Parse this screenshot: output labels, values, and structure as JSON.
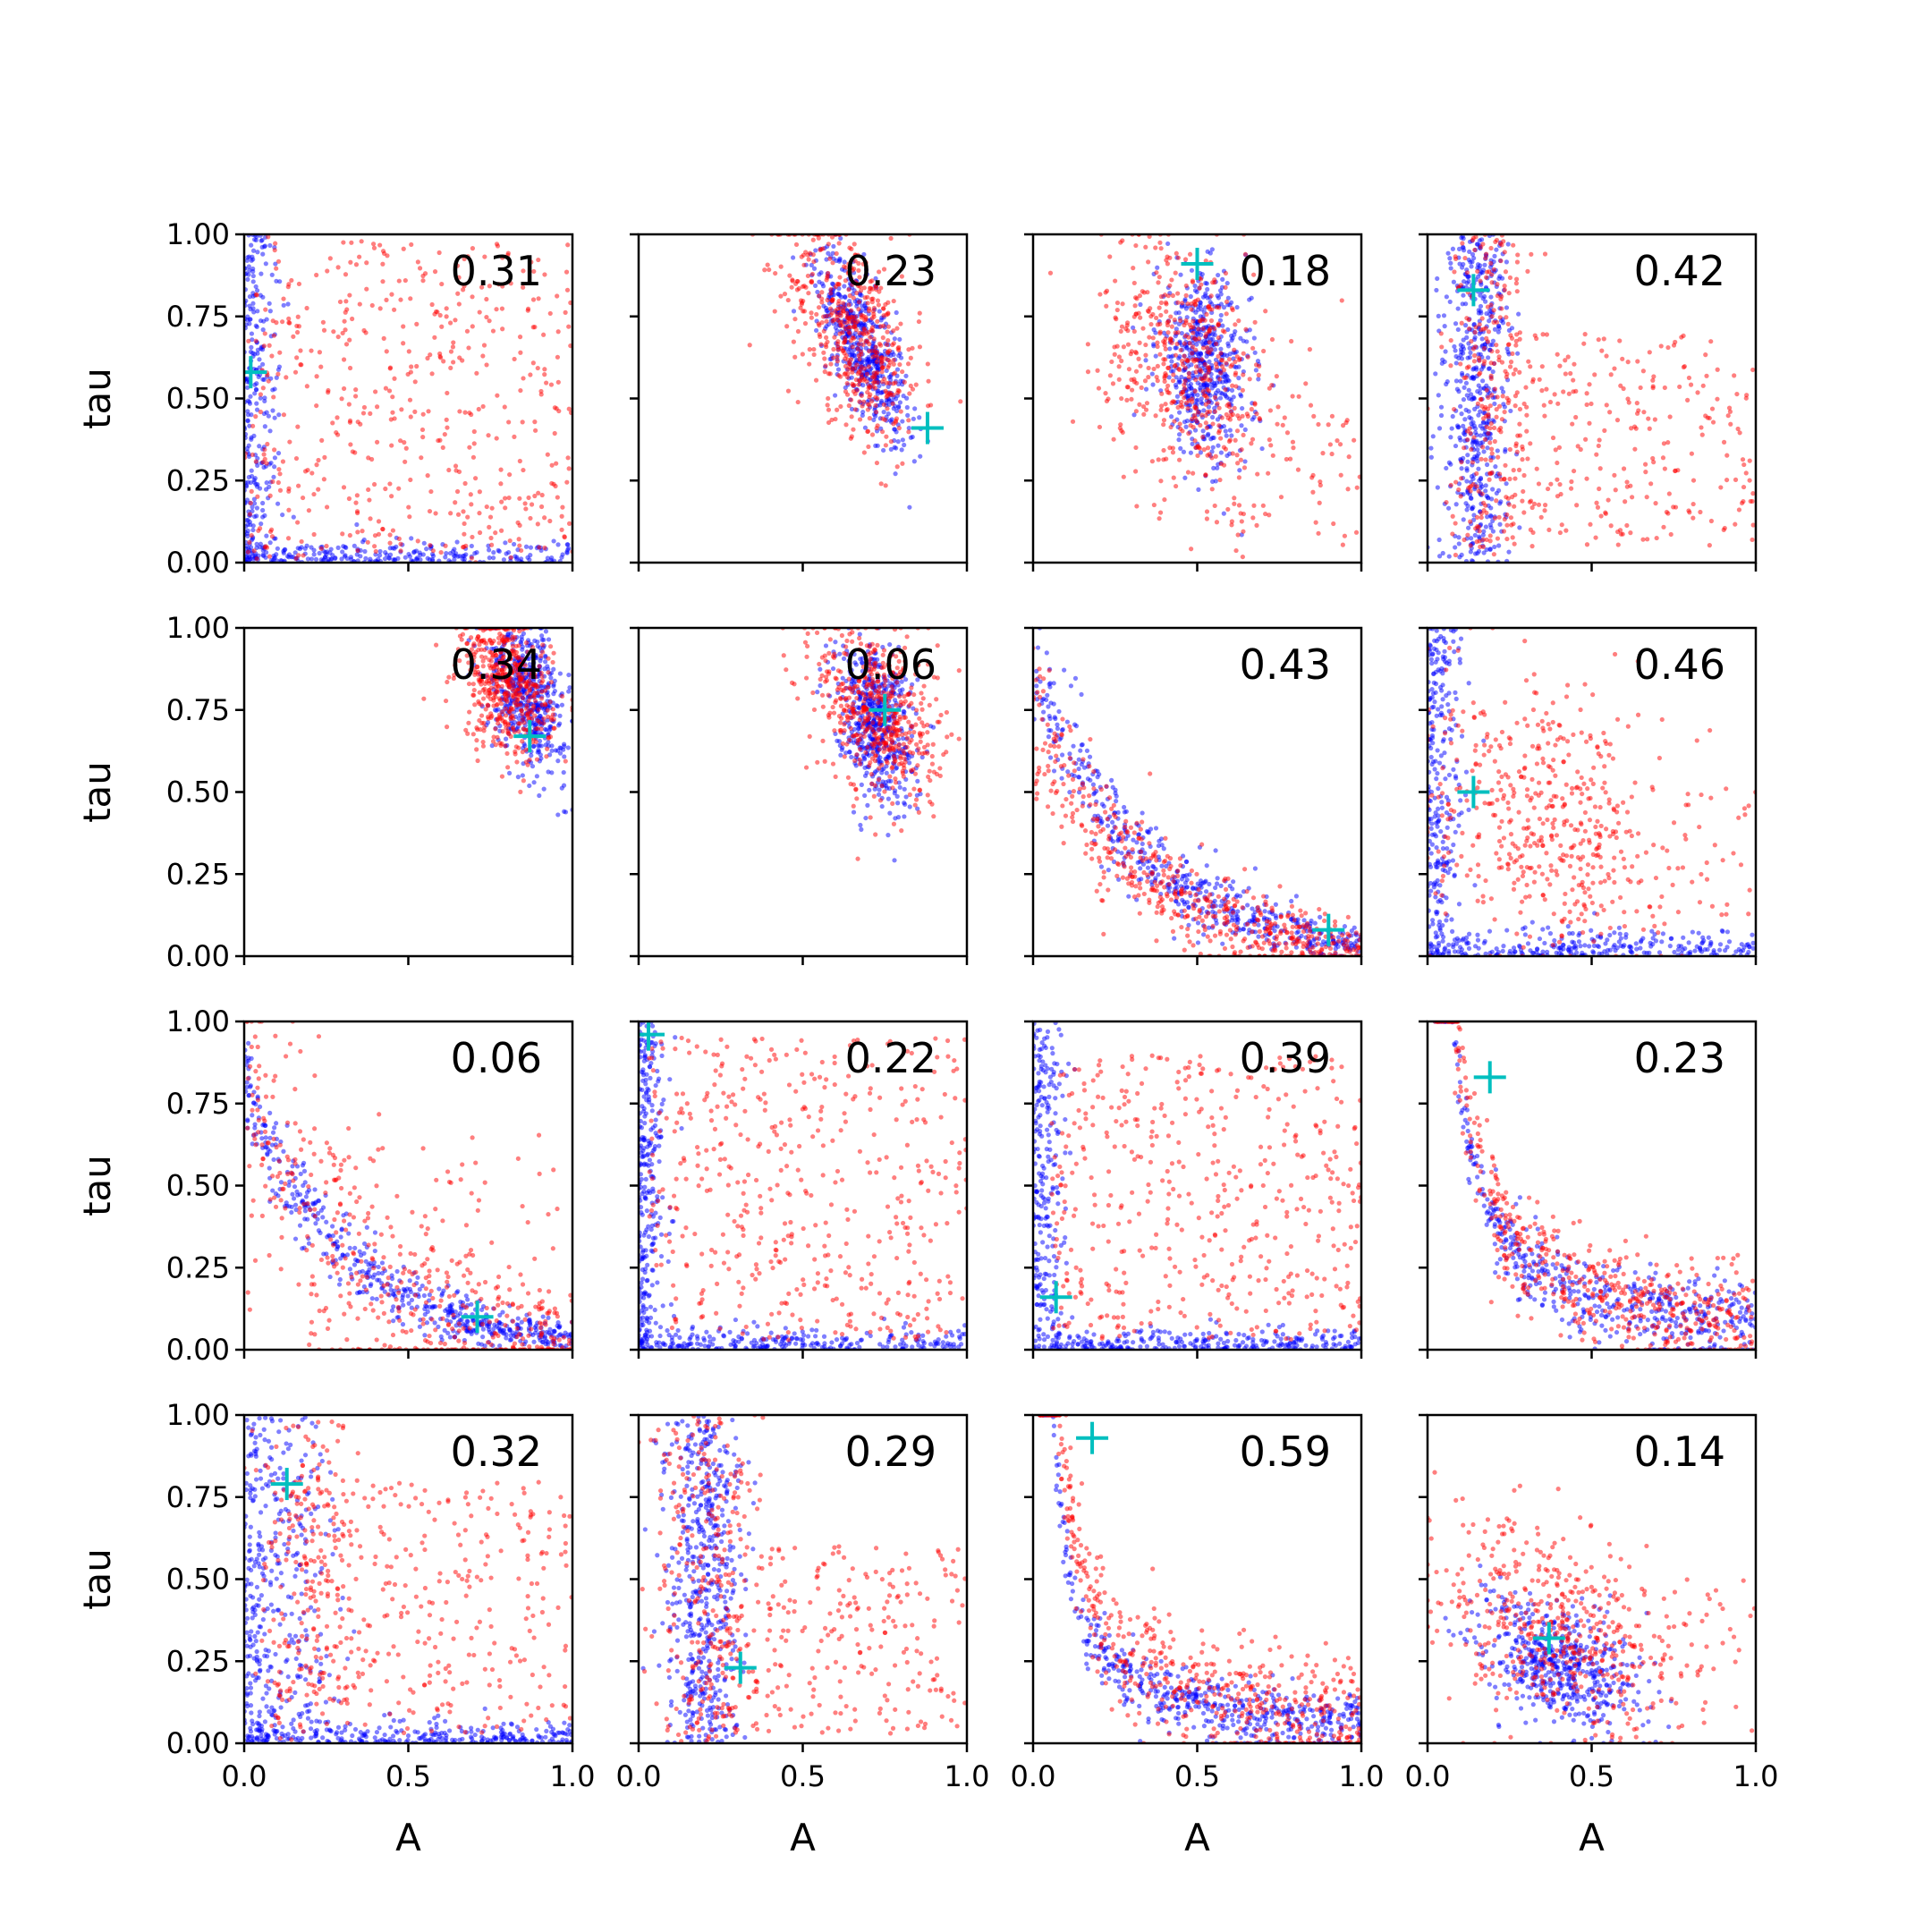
{
  "colors": {
    "series_blue": "#0000ff",
    "series_red": "#ff0000",
    "marker": "#00bfbf",
    "axes": "#000000",
    "background": "#ffffff"
  },
  "chart_data": {
    "type": "scatter",
    "layout": "4x4 grid of scatter panels, shared axes",
    "grid": false,
    "legend": "none",
    "xlabel": "A",
    "ylabel": "tau",
    "xlim": [
      0,
      1
    ],
    "ylim": [
      0,
      1
    ],
    "xticks": [
      "0.0",
      "0.5",
      "1.0"
    ],
    "yticks": [
      "0.00",
      "0.25",
      "0.50",
      "0.75",
      "1.00"
    ],
    "marker_style": "plus",
    "panels": [
      {
        "label": "0.31",
        "marker": [
          0.02,
          0.58
        ],
        "blue_shape": "L-shape along both axes",
        "red_shape": "diffuse spread"
      },
      {
        "label": "0.23",
        "marker": [
          0.88,
          0.41
        ],
        "blue_shape": "cluster centered (0.68, 0.66)",
        "red_shape": "cluster centered (0.65, 0.72)"
      },
      {
        "label": "0.18",
        "marker": [
          0.5,
          0.91
        ],
        "blue_shape": "cluster centered (0.52, 0.62)",
        "red_shape": "cluster centered (0.48, 0.60)"
      },
      {
        "label": "0.42",
        "marker": [
          0.14,
          0.83
        ],
        "blue_shape": "vertical band near A=0.15",
        "red_shape": "band with tail to right"
      },
      {
        "label": "0.34",
        "marker": [
          0.87,
          0.67
        ],
        "blue_shape": "cluster centered (0.85, 0.80)",
        "red_shape": "cluster centered (0.80, 0.82)"
      },
      {
        "label": "0.06",
        "marker": [
          0.75,
          0.75
        ],
        "blue_shape": "cluster centered (0.72, 0.73)",
        "red_shape": "cluster centered (0.72, 0.74)"
      },
      {
        "label": "0.43",
        "marker": [
          0.9,
          0.08
        ],
        "blue_shape": "decaying curve",
        "red_shape": "decaying curve"
      },
      {
        "label": "0.46",
        "marker": [
          0.14,
          0.5
        ],
        "blue_shape": "L-shape",
        "red_shape": "diffuse cluster near (0.3, 0.4)"
      },
      {
        "label": "0.06",
        "marker": [
          0.71,
          0.1
        ],
        "blue_shape": "decaying curve",
        "red_shape": "decaying curve, diffuse"
      },
      {
        "label": "0.22",
        "marker": [
          0.03,
          0.96
        ],
        "blue_shape": "L-shape",
        "red_shape": "diffuse spread"
      },
      {
        "label": "0.39",
        "marker": [
          0.07,
          0.16
        ],
        "blue_shape": "L-shape",
        "red_shape": "diffuse spread"
      },
      {
        "label": "0.23",
        "marker": [
          0.19,
          0.83
        ],
        "blue_shape": "hyperbolic curve",
        "red_shape": "hyperbolic curve"
      },
      {
        "label": "0.32",
        "marker": [
          0.13,
          0.79
        ],
        "blue_shape": "L-shape",
        "red_shape": "diffuse spread"
      },
      {
        "label": "0.29",
        "marker": [
          0.31,
          0.23
        ],
        "blue_shape": "vertical band near A=0.2",
        "red_shape": "band with tail to right"
      },
      {
        "label": "0.59",
        "marker": [
          0.18,
          0.93
        ],
        "blue_shape": "hyperbolic curve",
        "red_shape": "hyperbolic curve, diffuse"
      },
      {
        "label": "0.14",
        "marker": [
          0.37,
          0.32
        ],
        "blue_shape": "cluster centered (0.40, 0.25)",
        "red_shape": "diffuse cluster"
      }
    ]
  }
}
